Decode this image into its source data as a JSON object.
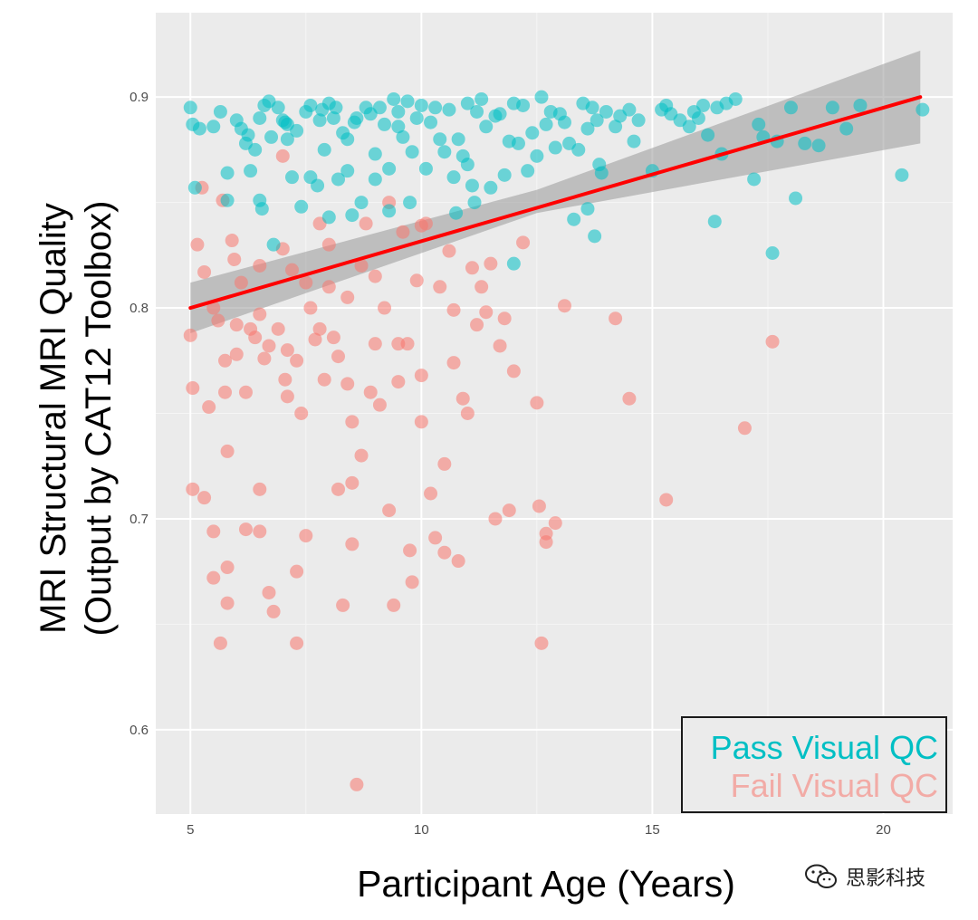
{
  "chart_data": {
    "type": "scatter",
    "xlabel": "Participant Age (Years)",
    "ylabel_line1": "MRI Structural MRI Quality",
    "ylabel_line2": "(Output by CAT12 Toolbox)",
    "xlim": [
      4.25,
      21.5
    ],
    "ylim": [
      0.56,
      0.94
    ],
    "xticks": [
      5,
      10,
      15,
      20
    ],
    "yticks": [
      0.6,
      0.7,
      0.8,
      0.9
    ],
    "xtick_labels": [
      "5",
      "10",
      "15",
      "20"
    ],
    "ytick_labels": [
      "0.6",
      "0.7",
      "0.8",
      "0.9"
    ],
    "legend": {
      "position": "bottom-right",
      "entries": [
        {
          "label": "Pass Visual QC",
          "color": "#00BFC4"
        },
        {
          "label": "Fail Visual QC",
          "color": "#F8766D"
        }
      ]
    },
    "trend_line": {
      "color": "#FF0000",
      "x": [
        5.0,
        20.8
      ],
      "y": [
        0.8,
        0.9
      ],
      "ci_lower": [
        [
          5.0,
          0.788
        ],
        [
          12.5,
          0.845
        ],
        [
          20.8,
          0.878
        ]
      ],
      "ci_upper": [
        [
          5.0,
          0.812
        ],
        [
          12.5,
          0.856
        ],
        [
          20.8,
          0.922
        ]
      ]
    },
    "series": [
      {
        "name": "Pass Visual QC",
        "color": "#00BFC4",
        "points": [
          [
            5.0,
            0.895
          ],
          [
            5.05,
            0.887
          ],
          [
            5.1,
            0.857
          ],
          [
            5.2,
            0.885
          ],
          [
            5.5,
            0.886
          ],
          [
            5.65,
            0.893
          ],
          [
            5.8,
            0.864
          ],
          [
            5.8,
            0.851
          ],
          [
            6.0,
            0.889
          ],
          [
            6.1,
            0.885
          ],
          [
            6.2,
            0.878
          ],
          [
            6.25,
            0.882
          ],
          [
            6.3,
            0.865
          ],
          [
            6.4,
            0.875
          ],
          [
            6.5,
            0.89
          ],
          [
            6.5,
            0.851
          ],
          [
            6.55,
            0.847
          ],
          [
            6.6,
            0.896
          ],
          [
            6.7,
            0.898
          ],
          [
            6.75,
            0.881
          ],
          [
            6.8,
            0.83
          ],
          [
            6.9,
            0.895
          ],
          [
            7.0,
            0.889
          ],
          [
            7.05,
            0.888
          ],
          [
            7.1,
            0.887
          ],
          [
            7.1,
            0.88
          ],
          [
            7.2,
            0.862
          ],
          [
            7.3,
            0.884
          ],
          [
            7.4,
            0.848
          ],
          [
            7.5,
            0.893
          ],
          [
            7.6,
            0.896
          ],
          [
            7.6,
            0.862
          ],
          [
            7.75,
            0.858
          ],
          [
            7.8,
            0.889
          ],
          [
            7.85,
            0.894
          ],
          [
            7.9,
            0.875
          ],
          [
            8.0,
            0.843
          ],
          [
            8.0,
            0.897
          ],
          [
            8.1,
            0.89
          ],
          [
            8.15,
            0.895
          ],
          [
            8.2,
            0.861
          ],
          [
            8.3,
            0.883
          ],
          [
            8.4,
            0.88
          ],
          [
            8.4,
            0.865
          ],
          [
            8.5,
            0.844
          ],
          [
            8.55,
            0.888
          ],
          [
            8.6,
            0.89
          ],
          [
            8.7,
            0.85
          ],
          [
            8.8,
            0.895
          ],
          [
            8.9,
            0.892
          ],
          [
            9.0,
            0.873
          ],
          [
            9.0,
            0.861
          ],
          [
            9.1,
            0.895
          ],
          [
            9.2,
            0.887
          ],
          [
            9.3,
            0.866
          ],
          [
            9.3,
            0.846
          ],
          [
            9.4,
            0.899
          ],
          [
            9.5,
            0.893
          ],
          [
            9.5,
            0.886
          ],
          [
            9.6,
            0.881
          ],
          [
            9.7,
            0.898
          ],
          [
            9.75,
            0.85
          ],
          [
            9.8,
            0.874
          ],
          [
            9.9,
            0.89
          ],
          [
            10.0,
            0.896
          ],
          [
            10.1,
            0.866
          ],
          [
            10.2,
            0.888
          ],
          [
            10.3,
            0.895
          ],
          [
            10.4,
            0.88
          ],
          [
            10.5,
            0.874
          ],
          [
            10.6,
            0.894
          ],
          [
            10.7,
            0.862
          ],
          [
            10.75,
            0.845
          ],
          [
            10.8,
            0.88
          ],
          [
            10.9,
            0.872
          ],
          [
            11.0,
            0.868
          ],
          [
            11.0,
            0.897
          ],
          [
            11.1,
            0.858
          ],
          [
            11.15,
            0.85
          ],
          [
            11.2,
            0.893
          ],
          [
            11.3,
            0.899
          ],
          [
            11.4,
            0.886
          ],
          [
            11.5,
            0.857
          ],
          [
            11.6,
            0.891
          ],
          [
            11.7,
            0.892
          ],
          [
            11.8,
            0.863
          ],
          [
            11.9,
            0.879
          ],
          [
            12.0,
            0.897
          ],
          [
            12.0,
            0.821
          ],
          [
            12.1,
            0.878
          ],
          [
            12.2,
            0.896
          ],
          [
            12.3,
            0.865
          ],
          [
            12.4,
            0.883
          ],
          [
            12.5,
            0.872
          ],
          [
            12.6,
            0.9
          ],
          [
            12.7,
            0.887
          ],
          [
            12.8,
            0.893
          ],
          [
            12.9,
            0.876
          ],
          [
            13.0,
            0.892
          ],
          [
            13.1,
            0.888
          ],
          [
            13.2,
            0.878
          ],
          [
            13.3,
            0.842
          ],
          [
            13.4,
            0.875
          ],
          [
            13.5,
            0.897
          ],
          [
            13.6,
            0.885
          ],
          [
            13.6,
            0.847
          ],
          [
            13.7,
            0.895
          ],
          [
            13.75,
            0.834
          ],
          [
            13.8,
            0.889
          ],
          [
            13.85,
            0.868
          ],
          [
            13.9,
            0.864
          ],
          [
            14.0,
            0.893
          ],
          [
            14.2,
            0.886
          ],
          [
            14.3,
            0.891
          ],
          [
            14.5,
            0.894
          ],
          [
            14.6,
            0.879
          ],
          [
            14.7,
            0.889
          ],
          [
            15.0,
            0.865
          ],
          [
            15.2,
            0.894
          ],
          [
            15.3,
            0.896
          ],
          [
            15.4,
            0.892
          ],
          [
            15.6,
            0.889
          ],
          [
            15.8,
            0.886
          ],
          [
            15.9,
            0.893
          ],
          [
            16.0,
            0.89
          ],
          [
            16.1,
            0.896
          ],
          [
            16.2,
            0.882
          ],
          [
            16.35,
            0.841
          ],
          [
            16.4,
            0.895
          ],
          [
            16.5,
            0.873
          ],
          [
            16.6,
            0.897
          ],
          [
            16.8,
            0.899
          ],
          [
            17.2,
            0.861
          ],
          [
            17.3,
            0.887
          ],
          [
            17.4,
            0.881
          ],
          [
            17.6,
            0.826
          ],
          [
            17.7,
            0.879
          ],
          [
            18.0,
            0.895
          ],
          [
            18.1,
            0.852
          ],
          [
            18.3,
            0.878
          ],
          [
            18.6,
            0.877
          ],
          [
            18.9,
            0.895
          ],
          [
            19.2,
            0.885
          ],
          [
            19.5,
            0.896
          ],
          [
            20.4,
            0.863
          ],
          [
            20.85,
            0.894
          ]
        ]
      },
      {
        "name": "Fail Visual QC",
        "color": "#F8766D",
        "points": [
          [
            5.0,
            0.787
          ],
          [
            5.05,
            0.762
          ],
          [
            5.05,
            0.714
          ],
          [
            5.15,
            0.83
          ],
          [
            5.25,
            0.857
          ],
          [
            5.3,
            0.817
          ],
          [
            5.3,
            0.71
          ],
          [
            5.4,
            0.753
          ],
          [
            5.5,
            0.8
          ],
          [
            5.5,
            0.694
          ],
          [
            5.5,
            0.672
          ],
          [
            5.6,
            0.794
          ],
          [
            5.65,
            0.641
          ],
          [
            5.7,
            0.851
          ],
          [
            5.75,
            0.775
          ],
          [
            5.75,
            0.76
          ],
          [
            5.8,
            0.732
          ],
          [
            5.8,
            0.677
          ],
          [
            5.8,
            0.66
          ],
          [
            5.9,
            0.832
          ],
          [
            5.95,
            0.823
          ],
          [
            6.0,
            0.778
          ],
          [
            6.0,
            0.792
          ],
          [
            6.1,
            0.812
          ],
          [
            6.2,
            0.76
          ],
          [
            6.2,
            0.695
          ],
          [
            6.3,
            0.79
          ],
          [
            6.4,
            0.786
          ],
          [
            6.5,
            0.82
          ],
          [
            6.5,
            0.797
          ],
          [
            6.5,
            0.714
          ],
          [
            6.5,
            0.694
          ],
          [
            6.6,
            0.776
          ],
          [
            6.7,
            0.782
          ],
          [
            6.7,
            0.665
          ],
          [
            6.8,
            0.656
          ],
          [
            6.9,
            0.79
          ],
          [
            7.0,
            0.872
          ],
          [
            7.0,
            0.828
          ],
          [
            7.05,
            0.766
          ],
          [
            7.1,
            0.78
          ],
          [
            7.1,
            0.758
          ],
          [
            7.2,
            0.818
          ],
          [
            7.3,
            0.775
          ],
          [
            7.3,
            0.675
          ],
          [
            7.3,
            0.641
          ],
          [
            7.4,
            0.75
          ],
          [
            7.5,
            0.812
          ],
          [
            7.5,
            0.692
          ],
          [
            7.6,
            0.8
          ],
          [
            7.7,
            0.785
          ],
          [
            7.8,
            0.84
          ],
          [
            7.8,
            0.79
          ],
          [
            7.9,
            0.766
          ],
          [
            8.0,
            0.83
          ],
          [
            8.0,
            0.81
          ],
          [
            8.1,
            0.786
          ],
          [
            8.2,
            0.777
          ],
          [
            8.2,
            0.714
          ],
          [
            8.3,
            0.659
          ],
          [
            8.4,
            0.805
          ],
          [
            8.4,
            0.764
          ],
          [
            8.5,
            0.746
          ],
          [
            8.5,
            0.717
          ],
          [
            8.5,
            0.688
          ],
          [
            8.6,
            0.574
          ],
          [
            8.7,
            0.82
          ],
          [
            8.7,
            0.73
          ],
          [
            8.8,
            0.84
          ],
          [
            8.9,
            0.76
          ],
          [
            9.0,
            0.815
          ],
          [
            9.0,
            0.783
          ],
          [
            9.1,
            0.754
          ],
          [
            9.2,
            0.8
          ],
          [
            9.3,
            0.85
          ],
          [
            9.3,
            0.704
          ],
          [
            9.4,
            0.659
          ],
          [
            9.5,
            0.783
          ],
          [
            9.5,
            0.765
          ],
          [
            9.6,
            0.836
          ],
          [
            9.7,
            0.783
          ],
          [
            9.75,
            0.685
          ],
          [
            9.8,
            0.67
          ],
          [
            9.9,
            0.813
          ],
          [
            10.0,
            0.839
          ],
          [
            10.0,
            0.768
          ],
          [
            10.0,
            0.746
          ],
          [
            10.1,
            0.84
          ],
          [
            10.2,
            0.712
          ],
          [
            10.3,
            0.691
          ],
          [
            10.4,
            0.81
          ],
          [
            10.5,
            0.726
          ],
          [
            10.5,
            0.684
          ],
          [
            10.6,
            0.827
          ],
          [
            10.7,
            0.799
          ],
          [
            10.7,
            0.774
          ],
          [
            10.8,
            0.68
          ],
          [
            10.9,
            0.757
          ],
          [
            11.0,
            0.75
          ],
          [
            11.1,
            0.819
          ],
          [
            11.2,
            0.792
          ],
          [
            11.3,
            0.81
          ],
          [
            11.4,
            0.798
          ],
          [
            11.5,
            0.821
          ],
          [
            11.6,
            0.7
          ],
          [
            11.7,
            0.782
          ],
          [
            11.8,
            0.795
          ],
          [
            11.9,
            0.704
          ],
          [
            12.0,
            0.77
          ],
          [
            12.2,
            0.831
          ],
          [
            12.5,
            0.755
          ],
          [
            12.55,
            0.706
          ],
          [
            12.6,
            0.641
          ],
          [
            12.7,
            0.693
          ],
          [
            12.7,
            0.689
          ],
          [
            12.9,
            0.698
          ],
          [
            13.1,
            0.801
          ],
          [
            14.2,
            0.795
          ],
          [
            14.5,
            0.757
          ],
          [
            15.3,
            0.709
          ],
          [
            17.0,
            0.743
          ],
          [
            17.6,
            0.784
          ]
        ]
      }
    ]
  },
  "watermark": {
    "label": "思影科技",
    "icon": "wechat-icon"
  }
}
